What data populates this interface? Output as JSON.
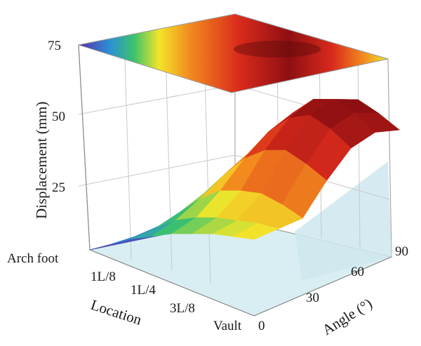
{
  "chart_data": {
    "type": "surface3d",
    "zlabel": "Displacement (mm)",
    "xlabel": "Location",
    "ylabel": "Angle (°)",
    "z_ticks": [
      "25",
      "50",
      "75"
    ],
    "x_ticks": [
      "Arch foot",
      "1L/8",
      "1L/4",
      "3L/8",
      "Vault"
    ],
    "y_ticks": [
      "0",
      "30",
      "60",
      "90"
    ],
    "zlim": [
      0,
      75
    ],
    "angle": [
      0,
      15,
      30,
      45,
      60,
      75,
      90
    ],
    "location": [
      "Arch foot",
      "1L/16",
      "1L/8",
      "3L/16",
      "1L/4",
      "5L/16",
      "3L/8",
      "7L/16",
      "Vault"
    ],
    "series": [
      {
        "angle": 0,
        "values": [
          0,
          5,
          10,
          14,
          18,
          21,
          24,
          26,
          28
        ]
      },
      {
        "angle": 15,
        "values": [
          0,
          6,
          12,
          18,
          22,
          25,
          27,
          29,
          30
        ]
      },
      {
        "angle": 30,
        "values": [
          0,
          8,
          16,
          24,
          30,
          33,
          35,
          34,
          32
        ]
      },
      {
        "angle": 45,
        "values": [
          0,
          10,
          21,
          31,
          40,
          46,
          49,
          47,
          44
        ]
      },
      {
        "angle": 60,
        "values": [
          0,
          11,
          24,
          37,
          48,
          56,
          60,
          58,
          54
        ]
      },
      {
        "angle": 75,
        "values": [
          0,
          12,
          26,
          40,
          53,
          61,
          64,
          62,
          58
        ]
      },
      {
        "angle": 90,
        "values": [
          0,
          12,
          25,
          39,
          51,
          59,
          62,
          60,
          57
        ]
      }
    ],
    "colormap": "jet",
    "grid": true
  }
}
